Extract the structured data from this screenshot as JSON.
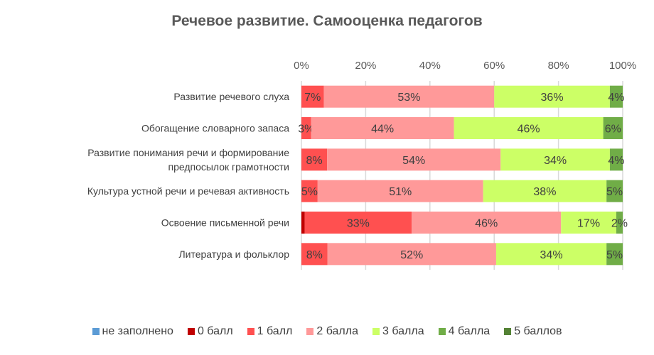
{
  "chart_data": {
    "type": "bar",
    "orientation": "horizontal",
    "stacked": "percent",
    "title": "Речевое развитие. Самооценка педагогов",
    "categories": [
      "Развитие речевого слуха",
      "Обогащение словарного запаса",
      "Развитие понимания речи и формирование предпосылок грамотности",
      "Культура устной речи и речевая активность",
      "Освоение письменной речи",
      "Литература и фольклор"
    ],
    "xticks": [
      "0%",
      "20%",
      "40%",
      "60%",
      "80%",
      "100%"
    ],
    "xlim": [
      0,
      100
    ],
    "grid": true,
    "legend_position": "bottom",
    "series": [
      {
        "name": "не заполнено",
        "color": "#5B9BD5",
        "values": [
          0,
          0,
          0,
          0,
          0,
          0
        ],
        "labels": [
          null,
          null,
          null,
          null,
          null,
          null
        ]
      },
      {
        "name": "0 балл",
        "color": "#C00000",
        "values": [
          0,
          0,
          0,
          0,
          1,
          0
        ],
        "labels": [
          null,
          null,
          null,
          null,
          null,
          null
        ]
      },
      {
        "name": "1 балл",
        "color": "#FF5050",
        "values": [
          7,
          3,
          8,
          5,
          33,
          8
        ],
        "labels": [
          "7%",
          "3%",
          "8%",
          "5%",
          "33%",
          "8%"
        ]
      },
      {
        "name": "2 балла",
        "color": "#FF9999",
        "values": [
          53,
          44,
          54,
          51,
          46,
          52
        ],
        "labels": [
          "53%",
          "44%",
          "54%",
          "51%",
          "46%",
          "52%"
        ]
      },
      {
        "name": "3 балла",
        "color": "#CCFF66",
        "values": [
          36,
          46,
          34,
          38,
          17,
          34
        ],
        "labels": [
          "36%",
          "46%",
          "34%",
          "38%",
          "17%",
          "34%"
        ]
      },
      {
        "name": "4 балла",
        "color": "#70AD47",
        "values": [
          4,
          6,
          4,
          5,
          2,
          5
        ],
        "labels": [
          "4%",
          "6%",
          "4%",
          "5%",
          "2%",
          "5%"
        ]
      },
      {
        "name": "5 баллов",
        "color": "#548235",
        "values": [
          0,
          0,
          0,
          0,
          0,
          0
        ],
        "labels": [
          null,
          null,
          null,
          null,
          null,
          null
        ]
      }
    ]
  }
}
